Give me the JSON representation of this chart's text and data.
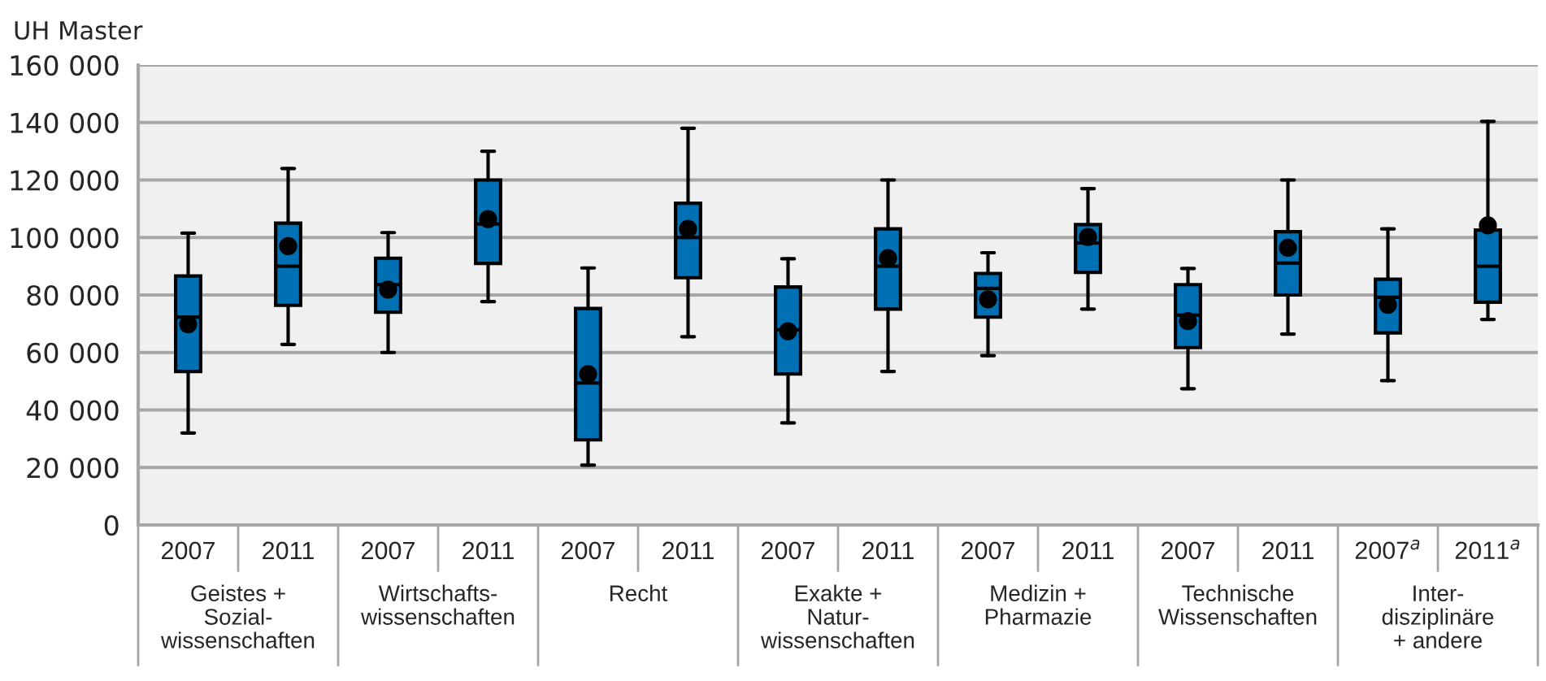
{
  "chart_data": {
    "type": "box",
    "ylabel": "UH Master",
    "categories": [
      "2007",
      "2011",
      "2007",
      "2011",
      "2007",
      "2011",
      "2007",
      "2011",
      "2007",
      "2011",
      "2007",
      "2011",
      "2007$^{a}$",
      "2011$^{a}$"
    ],
    "annotations": [
      "Geistes +\nSozial-\nwissenschaften",
      "Wirtschafts-\nwissenschaften",
      "Recht",
      "Exakte +\nNatur-\nwissenschaften",
      "Medizin +\nPharmazie",
      "Technische\nWissenschaften",
      "Inter-\ndisziplinäre\n+ andere"
    ],
    "color": "#0070b4",
    "boxes": [
      {
        "low": 32000,
        "q1": 53400,
        "median": 72300,
        "q3": 86600,
        "high": 101500,
        "mean": 69800
      },
      {
        "low": 62800,
        "q1": 76400,
        "median": 90000,
        "q3": 105000,
        "high": 124000,
        "mean": 97000
      },
      {
        "low": 60000,
        "q1": 74000,
        "median": 83600,
        "q3": 92800,
        "high": 101700,
        "mean": 81900
      },
      {
        "low": 77700,
        "q1": 91000,
        "median": 104700,
        "q3": 120000,
        "high": 130000,
        "mean": 106400
      },
      {
        "low": 20800,
        "q1": 29600,
        "median": 49400,
        "q3": 75300,
        "high": 89400,
        "mean": 52500
      },
      {
        "low": 65500,
        "q1": 86000,
        "median": 100000,
        "q3": 111900,
        "high": 138000,
        "mean": 103000
      },
      {
        "low": 35500,
        "q1": 52500,
        "median": 67900,
        "q3": 82800,
        "high": 92600,
        "mean": 67400
      },
      {
        "low": 53400,
        "q1": 75100,
        "median": 90000,
        "q3": 103000,
        "high": 120000,
        "mean": 92800
      },
      {
        "low": 58900,
        "q1": 72300,
        "median": 82300,
        "q3": 87500,
        "high": 94700,
        "mean": 78500
      },
      {
        "low": 75100,
        "q1": 87900,
        "median": 98100,
        "q3": 104500,
        "high": 117000,
        "mean": 100200
      },
      {
        "low": 47400,
        "q1": 61700,
        "median": 73000,
        "q3": 83600,
        "high": 89200,
        "mean": 70900
      },
      {
        "low": 66400,
        "q1": 80000,
        "median": 91100,
        "q3": 102000,
        "high": 120000,
        "mean": 96400
      },
      {
        "low": 50200,
        "q1": 66800,
        "median": 79200,
        "q3": 85500,
        "high": 103000,
        "mean": 76600
      },
      {
        "low": 71500,
        "q1": 77500,
        "median": 90000,
        "q3": 102600,
        "high": 140400,
        "mean": 104200
      }
    ],
    "ylim": [
      0,
      160000
    ],
    "yticks": [
      0,
      {
        "value": 20000,
        "label": "20 000"
      },
      {
        "value": 40000,
        "label": "40 000"
      },
      {
        "value": 60000,
        "label": "60 000"
      },
      {
        "value": 80000,
        "label": "80 000"
      },
      {
        "value": 100000,
        "label": "100 000"
      },
      {
        "value": 120000,
        "label": "120 000"
      },
      {
        "value": 140000,
        "label": "140 000"
      },
      {
        "value": 160000,
        "label": "160 000"
      }
    ],
    "grid": "y",
    "legend": false
  }
}
